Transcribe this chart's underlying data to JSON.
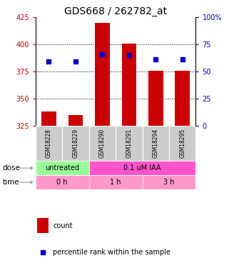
{
  "title": "GDS668 / 262782_at",
  "samples": [
    "GSM18228",
    "GSM18229",
    "GSM18290",
    "GSM18291",
    "GSM18294",
    "GSM18295"
  ],
  "bar_bottoms": [
    325,
    325,
    325,
    325,
    325,
    325
  ],
  "bar_heights": [
    13,
    10,
    95,
    76,
    51,
    51
  ],
  "percentile_vals": [
    59,
    59,
    66,
    65,
    61,
    61
  ],
  "left_ylim": [
    325,
    425
  ],
  "right_ylim": [
    0,
    100
  ],
  "left_yticks": [
    325,
    350,
    375,
    400,
    425
  ],
  "right_yticks": [
    0,
    25,
    50,
    75,
    100
  ],
  "right_yticklabels": [
    "0",
    "25",
    "50",
    "75",
    "100%"
  ],
  "bar_color": "#cc0000",
  "dot_color": "#0000cc",
  "title_fontsize": 10,
  "dose_labels": [
    {
      "text": "untreated",
      "color": "#99ff99"
    },
    {
      "text": "0.1 uM IAA",
      "color": "#ff55cc"
    }
  ],
  "time_color": "#ff99cc",
  "time_labels": [
    "0 h",
    "1 h",
    "3 h"
  ],
  "dose_label": "dose",
  "time_label": "time",
  "legend_count_label": "count",
  "legend_percentile_label": "percentile rank within the sample",
  "grid_linestyle": ":",
  "grid_color": "black",
  "axis_color_left": "#cc0000",
  "axis_color_right": "#0000cc",
  "sample_box_color": "#cccccc",
  "bg_color": "white"
}
